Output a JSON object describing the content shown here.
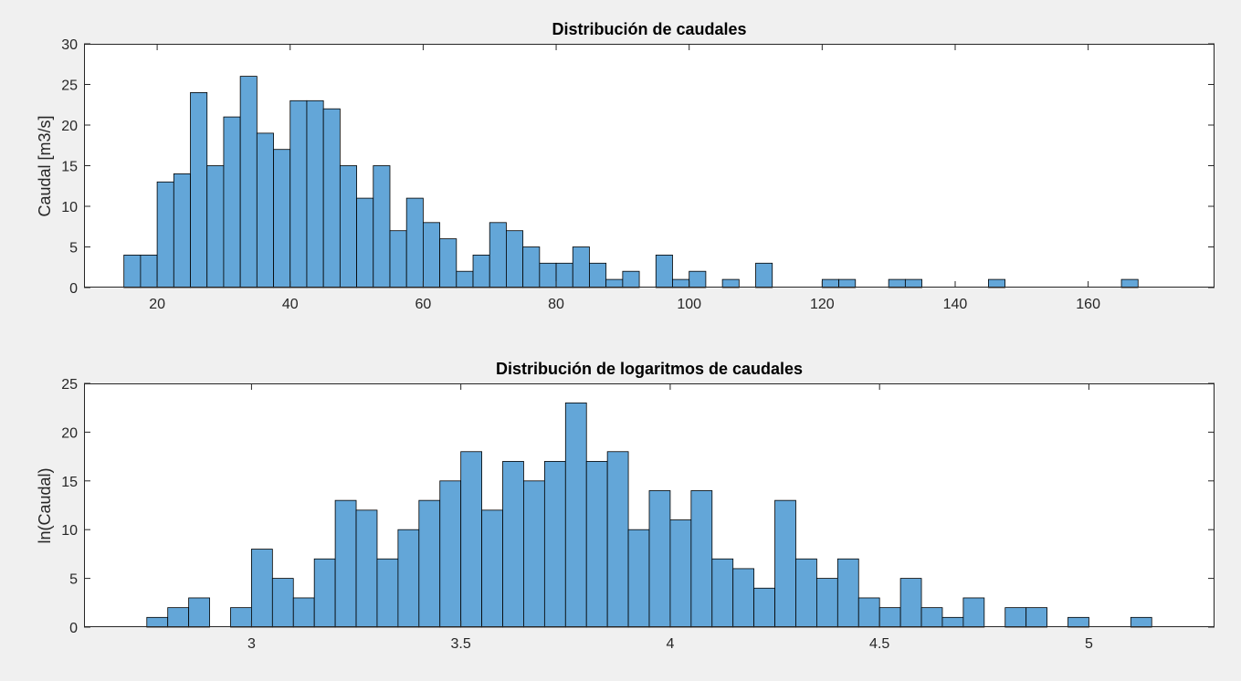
{
  "chart_data": [
    {
      "type": "bar",
      "title": "Distribución de caudales",
      "xlabel": "",
      "ylabel": "Caudal [m3/s]",
      "xlim": [
        9,
        179
      ],
      "ylim": [
        0,
        30
      ],
      "xticks": [
        20,
        40,
        60,
        80,
        100,
        120,
        140,
        160
      ],
      "yticks": [
        0,
        5,
        10,
        15,
        20,
        25,
        30
      ],
      "bin_width": 2.5,
      "bar_color": "#63a6d8",
      "edge_color": "#000000",
      "grid": false,
      "bins": [
        {
          "x": 15.0,
          "y": 4
        },
        {
          "x": 17.5,
          "y": 4
        },
        {
          "x": 20.0,
          "y": 13
        },
        {
          "x": 22.5,
          "y": 14
        },
        {
          "x": 25.0,
          "y": 24
        },
        {
          "x": 27.5,
          "y": 15
        },
        {
          "x": 30.0,
          "y": 21
        },
        {
          "x": 32.5,
          "y": 26
        },
        {
          "x": 35.0,
          "y": 19
        },
        {
          "x": 37.5,
          "y": 17
        },
        {
          "x": 40.0,
          "y": 23
        },
        {
          "x": 42.5,
          "y": 23
        },
        {
          "x": 45.0,
          "y": 22
        },
        {
          "x": 47.5,
          "y": 15
        },
        {
          "x": 50.0,
          "y": 11
        },
        {
          "x": 52.5,
          "y": 15
        },
        {
          "x": 55.0,
          "y": 7
        },
        {
          "x": 57.5,
          "y": 11
        },
        {
          "x": 60.0,
          "y": 8
        },
        {
          "x": 62.5,
          "y": 6
        },
        {
          "x": 65.0,
          "y": 2
        },
        {
          "x": 67.5,
          "y": 4
        },
        {
          "x": 70.0,
          "y": 8
        },
        {
          "x": 72.5,
          "y": 7
        },
        {
          "x": 75.0,
          "y": 5
        },
        {
          "x": 77.5,
          "y": 3
        },
        {
          "x": 80.0,
          "y": 3
        },
        {
          "x": 82.5,
          "y": 5
        },
        {
          "x": 85.0,
          "y": 3
        },
        {
          "x": 87.5,
          "y": 1
        },
        {
          "x": 90.0,
          "y": 2
        },
        {
          "x": 95.0,
          "y": 4
        },
        {
          "x": 97.5,
          "y": 1
        },
        {
          "x": 100.0,
          "y": 2
        },
        {
          "x": 105.0,
          "y": 1
        },
        {
          "x": 110.0,
          "y": 3
        },
        {
          "x": 120.0,
          "y": 1
        },
        {
          "x": 122.5,
          "y": 1
        },
        {
          "x": 130.0,
          "y": 1
        },
        {
          "x": 132.5,
          "y": 1
        },
        {
          "x": 145.0,
          "y": 1
        },
        {
          "x": 165.0,
          "y": 1
        }
      ]
    },
    {
      "type": "bar",
      "title": "Distribución de logaritmos de caudales",
      "xlabel": "",
      "ylabel": "ln(Caudal)",
      "xlim": [
        2.6,
        5.3
      ],
      "ylim": [
        0,
        25
      ],
      "xticks": [
        3,
        3.5,
        4,
        4.5,
        5
      ],
      "yticks": [
        0,
        5,
        10,
        15,
        20,
        25
      ],
      "bin_width": 0.05,
      "bar_color": "#63a6d8",
      "edge_color": "#000000",
      "grid": false,
      "bins": [
        {
          "x": 2.75,
          "y": 1
        },
        {
          "x": 2.8,
          "y": 2
        },
        {
          "x": 2.85,
          "y": 3
        },
        {
          "x": 2.95,
          "y": 2
        },
        {
          "x": 3.0,
          "y": 8
        },
        {
          "x": 3.05,
          "y": 5
        },
        {
          "x": 3.1,
          "y": 3
        },
        {
          "x": 3.15,
          "y": 7
        },
        {
          "x": 3.2,
          "y": 13
        },
        {
          "x": 3.25,
          "y": 12
        },
        {
          "x": 3.3,
          "y": 7
        },
        {
          "x": 3.35,
          "y": 10
        },
        {
          "x": 3.4,
          "y": 13
        },
        {
          "x": 3.45,
          "y": 15
        },
        {
          "x": 3.5,
          "y": 18
        },
        {
          "x": 3.55,
          "y": 12
        },
        {
          "x": 3.6,
          "y": 17
        },
        {
          "x": 3.65,
          "y": 15
        },
        {
          "x": 3.7,
          "y": 17
        },
        {
          "x": 3.75,
          "y": 23
        },
        {
          "x": 3.8,
          "y": 17
        },
        {
          "x": 3.85,
          "y": 18
        },
        {
          "x": 3.9,
          "y": 10
        },
        {
          "x": 3.95,
          "y": 14
        },
        {
          "x": 4.0,
          "y": 11
        },
        {
          "x": 4.05,
          "y": 14
        },
        {
          "x": 4.1,
          "y": 7
        },
        {
          "x": 4.15,
          "y": 6
        },
        {
          "x": 4.2,
          "y": 4
        },
        {
          "x": 4.25,
          "y": 13
        },
        {
          "x": 4.3,
          "y": 7
        },
        {
          "x": 4.35,
          "y": 5
        },
        {
          "x": 4.4,
          "y": 7
        },
        {
          "x": 4.45,
          "y": 3
        },
        {
          "x": 4.5,
          "y": 2
        },
        {
          "x": 4.55,
          "y": 5
        },
        {
          "x": 4.6,
          "y": 2
        },
        {
          "x": 4.65,
          "y": 1
        },
        {
          "x": 4.7,
          "y": 3
        },
        {
          "x": 4.8,
          "y": 2
        },
        {
          "x": 4.85,
          "y": 2
        },
        {
          "x": 4.95,
          "y": 1
        },
        {
          "x": 5.1,
          "y": 1
        }
      ]
    }
  ]
}
